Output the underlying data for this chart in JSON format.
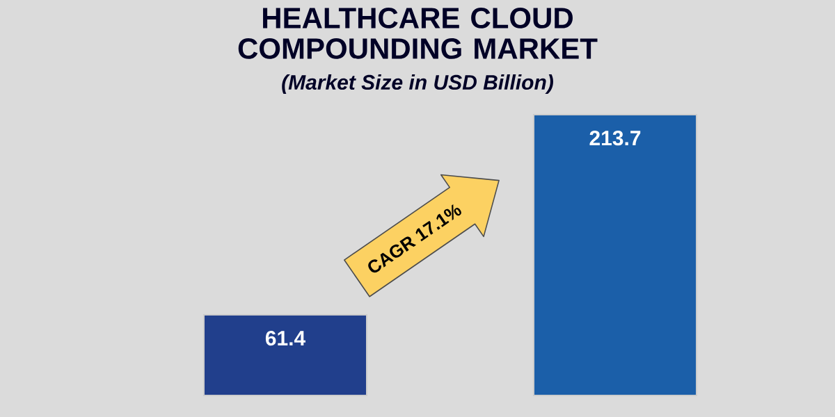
{
  "chart_data": {
    "type": "bar",
    "title": "HEALTHCARE CLOUD COMPOUNDING MARKET",
    "subtitle": "(Market Size in USD Billion)",
    "categories": [
      null,
      null
    ],
    "values": [
      61.4,
      213.7
    ],
    "colors": [
      "#213f8c",
      "#1b5fa9"
    ],
    "data_labels": true,
    "annotations": [
      "CAGR 17.1%"
    ]
  }
}
